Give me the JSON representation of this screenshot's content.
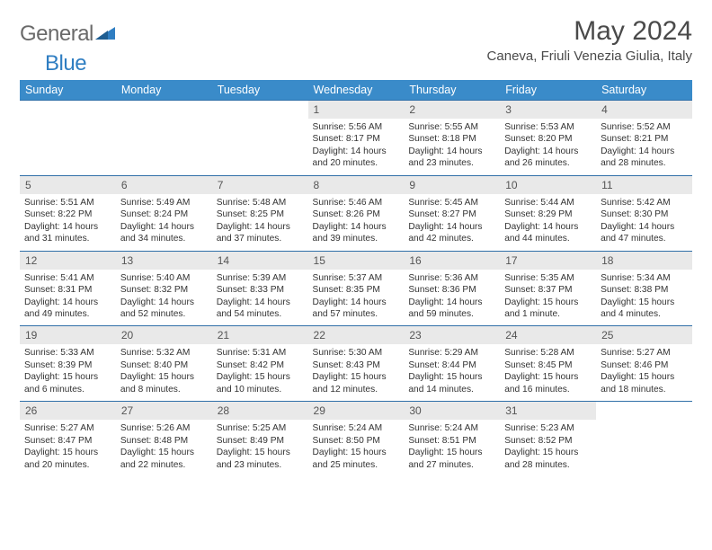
{
  "logo": {
    "word1": "General",
    "word2": "Blue"
  },
  "title": "May 2024",
  "location": "Caneva, Friuli Venezia Giulia, Italy",
  "colors": {
    "header_bg": "#3a8bc9",
    "header_text": "#ffffff",
    "daynum_bg": "#e9e9e9",
    "row_border": "#2f6fa8",
    "body_text": "#333333",
    "logo_gray": "#6a6a6a",
    "logo_blue": "#2f7ec2"
  },
  "dayHeaders": [
    "Sunday",
    "Monday",
    "Tuesday",
    "Wednesday",
    "Thursday",
    "Friday",
    "Saturday"
  ],
  "weeks": [
    {
      "nums": [
        "",
        "",
        "",
        "1",
        "2",
        "3",
        "4"
      ],
      "sunrise": [
        "",
        "",
        "",
        "5:56 AM",
        "5:55 AM",
        "5:53 AM",
        "5:52 AM"
      ],
      "sunset": [
        "",
        "",
        "",
        "8:17 PM",
        "8:18 PM",
        "8:20 PM",
        "8:21 PM"
      ],
      "daylight": [
        "",
        "",
        "",
        "14 hours and 20 minutes.",
        "14 hours and 23 minutes.",
        "14 hours and 26 minutes.",
        "14 hours and 28 minutes."
      ]
    },
    {
      "nums": [
        "5",
        "6",
        "7",
        "8",
        "9",
        "10",
        "11"
      ],
      "sunrise": [
        "5:51 AM",
        "5:49 AM",
        "5:48 AM",
        "5:46 AM",
        "5:45 AM",
        "5:44 AM",
        "5:42 AM"
      ],
      "sunset": [
        "8:22 PM",
        "8:24 PM",
        "8:25 PM",
        "8:26 PM",
        "8:27 PM",
        "8:29 PM",
        "8:30 PM"
      ],
      "daylight": [
        "14 hours and 31 minutes.",
        "14 hours and 34 minutes.",
        "14 hours and 37 minutes.",
        "14 hours and 39 minutes.",
        "14 hours and 42 minutes.",
        "14 hours and 44 minutes.",
        "14 hours and 47 minutes."
      ]
    },
    {
      "nums": [
        "12",
        "13",
        "14",
        "15",
        "16",
        "17",
        "18"
      ],
      "sunrise": [
        "5:41 AM",
        "5:40 AM",
        "5:39 AM",
        "5:37 AM",
        "5:36 AM",
        "5:35 AM",
        "5:34 AM"
      ],
      "sunset": [
        "8:31 PM",
        "8:32 PM",
        "8:33 PM",
        "8:35 PM",
        "8:36 PM",
        "8:37 PM",
        "8:38 PM"
      ],
      "daylight": [
        "14 hours and 49 minutes.",
        "14 hours and 52 minutes.",
        "14 hours and 54 minutes.",
        "14 hours and 57 minutes.",
        "14 hours and 59 minutes.",
        "15 hours and 1 minute.",
        "15 hours and 4 minutes."
      ]
    },
    {
      "nums": [
        "19",
        "20",
        "21",
        "22",
        "23",
        "24",
        "25"
      ],
      "sunrise": [
        "5:33 AM",
        "5:32 AM",
        "5:31 AM",
        "5:30 AM",
        "5:29 AM",
        "5:28 AM",
        "5:27 AM"
      ],
      "sunset": [
        "8:39 PM",
        "8:40 PM",
        "8:42 PM",
        "8:43 PM",
        "8:44 PM",
        "8:45 PM",
        "8:46 PM"
      ],
      "daylight": [
        "15 hours and 6 minutes.",
        "15 hours and 8 minutes.",
        "15 hours and 10 minutes.",
        "15 hours and 12 minutes.",
        "15 hours and 14 minutes.",
        "15 hours and 16 minutes.",
        "15 hours and 18 minutes."
      ]
    },
    {
      "nums": [
        "26",
        "27",
        "28",
        "29",
        "30",
        "31",
        ""
      ],
      "sunrise": [
        "5:27 AM",
        "5:26 AM",
        "5:25 AM",
        "5:24 AM",
        "5:24 AM",
        "5:23 AM",
        ""
      ],
      "sunset": [
        "8:47 PM",
        "8:48 PM",
        "8:49 PM",
        "8:50 PM",
        "8:51 PM",
        "8:52 PM",
        ""
      ],
      "daylight": [
        "15 hours and 20 minutes.",
        "15 hours and 22 minutes.",
        "15 hours and 23 minutes.",
        "15 hours and 25 minutes.",
        "15 hours and 27 minutes.",
        "15 hours and 28 minutes.",
        ""
      ]
    }
  ],
  "labels": {
    "sunrise": "Sunrise: ",
    "sunset": "Sunset: ",
    "daylight": "Daylight: "
  }
}
